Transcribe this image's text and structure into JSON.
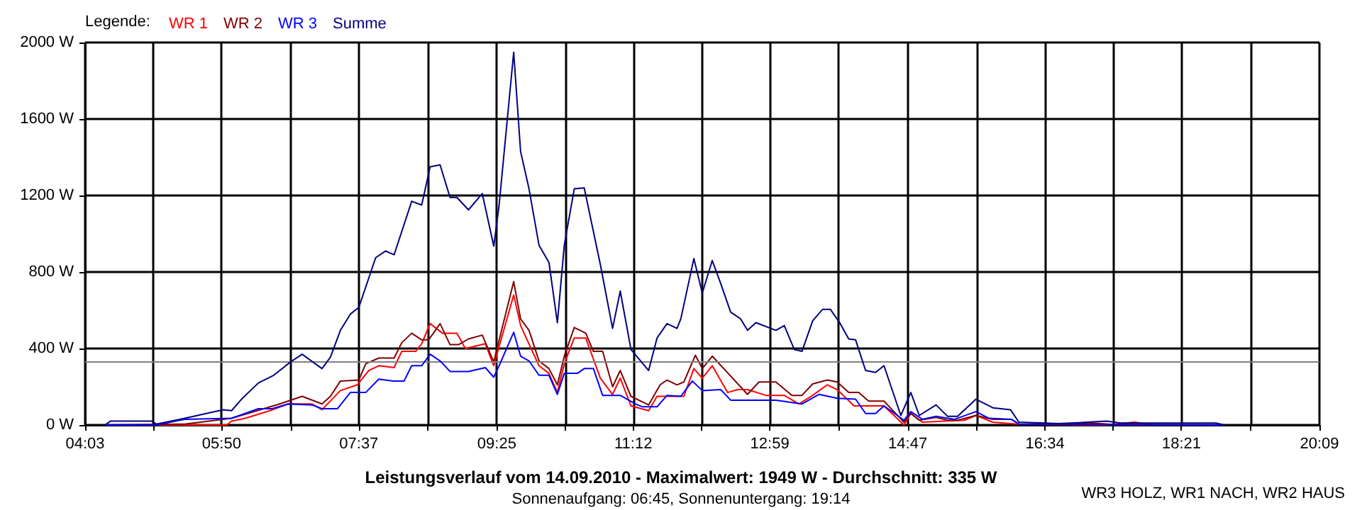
{
  "chart_data": {
    "type": "line",
    "title": "Leistungsverlauf vom 14.09.2010 - Maximalwert: 1949 W - Durchschnitt: 335 W",
    "subtitle": "Sonnenaufgang: 06:45, Sonnenuntergang: 19:14",
    "annotations": [
      "WR3 HOLZ, WR1 NACH, WR2 HAUS"
    ],
    "legend_title": "Legende:",
    "legend": "top left",
    "grid": true,
    "marker": "none",
    "line_style": "solid",
    "xlim": [
      4.05,
      20.15
    ],
    "xticks": [
      {
        "value": 4.05,
        "label": "04:03"
      },
      {
        "value": 4.94,
        "label": null
      },
      {
        "value": 5.83,
        "label": "05:50"
      },
      {
        "value": 6.73,
        "label": null
      },
      {
        "value": 7.62,
        "label": "07:37"
      },
      {
        "value": 8.52,
        "label": null
      },
      {
        "value": 9.42,
        "label": "09:25"
      },
      {
        "value": 10.31,
        "label": null
      },
      {
        "value": 11.2,
        "label": "11:12"
      },
      {
        "value": 12.09,
        "label": null
      },
      {
        "value": 12.98,
        "label": "12:59"
      },
      {
        "value": 13.88,
        "label": null
      },
      {
        "value": 14.78,
        "label": "14:47"
      },
      {
        "value": 15.68,
        "label": null
      },
      {
        "value": 16.57,
        "label": "16:34"
      },
      {
        "value": 17.46,
        "label": null
      },
      {
        "value": 18.35,
        "label": "18:21"
      },
      {
        "value": 19.25,
        "label": null
      },
      {
        "value": 20.15,
        "label": "20:09"
      }
    ],
    "ylim": [
      0,
      2000
    ],
    "yticks": [
      {
        "value": 0,
        "label": "0 W"
      },
      {
        "value": 400,
        "label": "400 W"
      },
      {
        "value": 800,
        "label": "800 W"
      },
      {
        "value": 1200,
        "label": "1200 W"
      },
      {
        "value": 1600,
        "label": "1600 W"
      },
      {
        "value": 2000,
        "label": "2000 W"
      }
    ],
    "ref_lines": [
      {
        "axis": "y",
        "value": 335,
        "color": "#808080"
      }
    ],
    "series": [
      {
        "name": "WR 1",
        "color": "#ff0000",
        "x": [
          4.31,
          5.9,
          5.96,
          6.14,
          6.46,
          6.7,
          7.01,
          7.14,
          7.38,
          7.6,
          7.75,
          7.88,
          8.08,
          8.18,
          8.36,
          8.44,
          8.55,
          8.71,
          8.9,
          9.01,
          9.27,
          9.38,
          9.64,
          9.73,
          9.97,
          10.1,
          10.21,
          10.3,
          10.43,
          10.58,
          10.77,
          10.93,
          11.03,
          11.17,
          11.4,
          11.51,
          11.82,
          11.86,
          11.99,
          12.1,
          12.23,
          12.43,
          12.56,
          12.69,
          12.93,
          13.17,
          13.36,
          13.54,
          13.73,
          13.86,
          14.08,
          14.47,
          14.73,
          14.82,
          14.97,
          15.52,
          15.67,
          15.89,
          16.21,
          17.37,
          17.74,
          17.98,
          18.91
        ],
        "values": [
          0,
          0,
          20,
          35,
          75,
          110,
          110,
          80,
          180,
          210,
          285,
          310,
          300,
          385,
          385,
          425,
          530,
          480,
          480,
          400,
          425,
          310,
          680,
          520,
          310,
          270,
          170,
          320,
          455,
          455,
          245,
          160,
          245,
          100,
          75,
          150,
          150,
          150,
          295,
          245,
          310,
          170,
          185,
          185,
          155,
          155,
          110,
          155,
          210,
          185,
          100,
          100,
          0,
          60,
          15,
          25,
          50,
          15,
          5,
          0,
          15,
          0,
          0
        ]
      },
      {
        "name": "WR 2",
        "color": "#800000",
        "x": [
          4.31,
          5.35,
          5.96,
          6.59,
          6.88,
          7.14,
          7.25,
          7.38,
          7.62,
          7.71,
          7.88,
          8.08,
          8.18,
          8.31,
          8.44,
          8.53,
          8.68,
          8.81,
          8.92,
          9.05,
          9.23,
          9.38,
          9.64,
          9.73,
          9.84,
          9.97,
          10.1,
          10.21,
          10.3,
          10.43,
          10.58,
          10.68,
          10.8,
          10.93,
          11.03,
          11.17,
          11.4,
          11.55,
          11.64,
          11.77,
          11.86,
          12.01,
          12.1,
          12.23,
          12.38,
          12.69,
          12.84,
          13.06,
          13.27,
          13.4,
          13.54,
          13.73,
          13.86,
          14.01,
          14.14,
          14.27,
          14.47,
          14.73,
          14.82,
          14.93,
          15.15,
          15.3,
          15.43,
          15.67,
          15.89,
          16.13,
          16.23,
          17.19,
          17.56,
          18.91
        ],
        "values": [
          0,
          5,
          35,
          110,
          150,
          110,
          150,
          230,
          235,
          320,
          350,
          350,
          430,
          480,
          445,
          445,
          530,
          420,
          420,
          450,
          470,
          330,
          750,
          555,
          495,
          335,
          295,
          210,
          360,
          510,
          480,
          385,
          385,
          200,
          285,
          150,
          105,
          210,
          235,
          210,
          225,
          365,
          295,
          360,
          295,
          160,
          225,
          225,
          155,
          155,
          215,
          235,
          225,
          170,
          170,
          125,
          125,
          15,
          60,
          25,
          40,
          25,
          25,
          50,
          30,
          30,
          5,
          10,
          0,
          0
        ]
      },
      {
        "name": "WR 3",
        "color": "#0000ff",
        "x": [
          4.31,
          4.98,
          5.35,
          5.96,
          6.31,
          6.49,
          6.7,
          7.01,
          7.14,
          7.34,
          7.51,
          7.71,
          7.88,
          8.07,
          8.21,
          8.31,
          8.44,
          8.55,
          8.68,
          8.81,
          9.05,
          9.27,
          9.38,
          9.45,
          9.64,
          9.73,
          9.84,
          9.97,
          10.1,
          10.21,
          10.3,
          10.47,
          10.56,
          10.68,
          10.8,
          11.03,
          11.23,
          11.32,
          11.51,
          11.64,
          11.82,
          11.97,
          12.1,
          12.34,
          12.47,
          13.06,
          13.4,
          13.62,
          13.86,
          14.1,
          14.23,
          14.36,
          14.47,
          14.73,
          14.82,
          14.97,
          15.15,
          15.39,
          15.67,
          15.84,
          16.13,
          16.23,
          18.91
        ],
        "values": [
          0,
          0,
          30,
          35,
          85,
          85,
          110,
          105,
          85,
          85,
          170,
          170,
          240,
          230,
          230,
          310,
          310,
          370,
          335,
          280,
          280,
          300,
          250,
          310,
          485,
          360,
          335,
          260,
          260,
          160,
          270,
          270,
          295,
          295,
          155,
          155,
          110,
          95,
          95,
          155,
          150,
          230,
          180,
          185,
          130,
          130,
          110,
          160,
          140,
          135,
          60,
          60,
          100,
          25,
          70,
          30,
          45,
          30,
          70,
          35,
          30,
          5,
          0
        ]
      },
      {
        "name": "Summe",
        "color": "#000080",
        "x": [
          4.31,
          4.38,
          4.92,
          4.98,
          5.35,
          5.85,
          5.96,
          6.09,
          6.31,
          6.51,
          6.73,
          6.88,
          7.14,
          7.25,
          7.38,
          7.51,
          7.62,
          7.84,
          7.97,
          8.08,
          8.31,
          8.44,
          8.55,
          8.68,
          8.81,
          8.9,
          9.05,
          9.23,
          9.38,
          9.45,
          9.64,
          9.73,
          9.84,
          9.97,
          10.1,
          10.21,
          10.3,
          10.43,
          10.56,
          10.77,
          10.93,
          11.03,
          11.17,
          11.4,
          11.51,
          11.64,
          11.77,
          11.82,
          11.99,
          12.1,
          12.23,
          12.34,
          12.47,
          12.6,
          12.69,
          12.8,
          13.06,
          13.17,
          13.3,
          13.4,
          13.54,
          13.67,
          13.77,
          13.9,
          14.01,
          14.1,
          14.23,
          14.36,
          14.47,
          14.69,
          14.82,
          14.93,
          15.15,
          15.3,
          15.43,
          15.67,
          15.89,
          16.12,
          16.23,
          16.76,
          17.37,
          17.56,
          17.98,
          18.8,
          18.91
        ],
        "values": [
          0,
          20,
          20,
          5,
          35,
          80,
          75,
          135,
          220,
          260,
          330,
          370,
          295,
          355,
          495,
          580,
          615,
          875,
          910,
          890,
          1170,
          1150,
          1350,
          1360,
          1190,
          1190,
          1125,
          1210,
          935,
          1150,
          1949,
          1430,
          1235,
          940,
          850,
          535,
          940,
          1235,
          1240,
          840,
          505,
          700,
          395,
          285,
          455,
          530,
          505,
          555,
          870,
          690,
          860,
          740,
          590,
          555,
          495,
          535,
          495,
          520,
          395,
          385,
          545,
          605,
          605,
          530,
          450,
          445,
          285,
          275,
          310,
          50,
          170,
          50,
          105,
          45,
          45,
          135,
          90,
          80,
          15,
          7,
          20,
          10,
          10,
          10,
          0
        ]
      }
    ]
  }
}
